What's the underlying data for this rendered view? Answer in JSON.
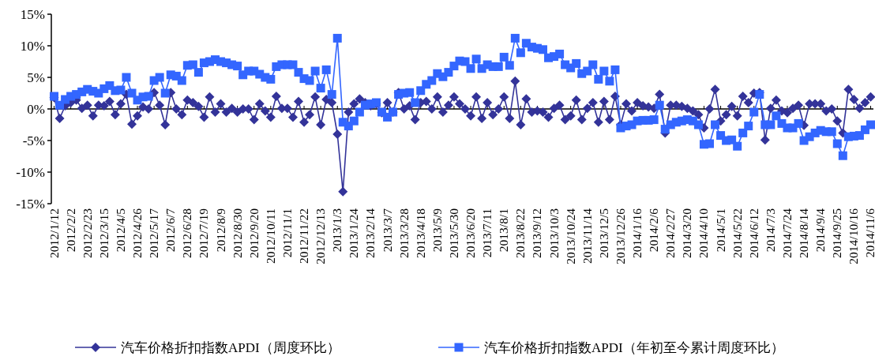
{
  "chart_data": {
    "type": "line",
    "categories": [
      "2012/1/12",
      null,
      null,
      "2012/2/2",
      null,
      null,
      "2012/2/23",
      null,
      null,
      "2012/3/15",
      null,
      null,
      "2012/4/5",
      null,
      null,
      "2012/4/26",
      null,
      null,
      "2012/5/17",
      null,
      null,
      "2012/6/7",
      null,
      null,
      "2012/6/28",
      null,
      null,
      "2012/7/19",
      null,
      null,
      "2012/8/9",
      null,
      null,
      "2012/8/30",
      null,
      null,
      "2012/9/20",
      null,
      null,
      "2012/10/11",
      null,
      null,
      "2012/11/1",
      null,
      null,
      "2012/11/22",
      null,
      null,
      "2012/12/13",
      null,
      null,
      "2013/1/3",
      null,
      null,
      "2013/1/24",
      null,
      null,
      "2013/2/14",
      null,
      null,
      "2013/3/7",
      null,
      null,
      "2013/3/28",
      null,
      null,
      "2013/4/18",
      null,
      null,
      "2013/5/9",
      null,
      null,
      "2013/5/30",
      null,
      null,
      "2013/6/20",
      null,
      null,
      "2013/7/11",
      null,
      null,
      "2013/8/1",
      null,
      null,
      "2013/8/22",
      null,
      null,
      "2013/9/12",
      null,
      null,
      "2013/10/3",
      null,
      null,
      "2013/10/24",
      null,
      null,
      "2013/11/14",
      null,
      null,
      "2013/12/5",
      null,
      null,
      "2013/12/26",
      null,
      null,
      "2014/1/16",
      null,
      null,
      "2014/2/6",
      null,
      null,
      "2014/2/27",
      null,
      null,
      "2014/3/20",
      null,
      null,
      "2014/4/10",
      null,
      null,
      "2014/5/1",
      null,
      null,
      "2014/5/22",
      null,
      null,
      "2014/6/12",
      null,
      null,
      "2014/7/3",
      null,
      null,
      "2014/7/24",
      null,
      null,
      "2014/8/14",
      null,
      null,
      "2014/9/4",
      null,
      null,
      "2014/9/25",
      null,
      null,
      "2014/10/16",
      null,
      null,
      "2014/11/6"
    ],
    "series": [
      {
        "name": "汽车价格折扣指数APDI（周度环比）",
        "color": "#333399",
        "marker": "diamond",
        "values": [
          1.8,
          -1.5,
          0.5,
          1.0,
          1.4,
          0.1,
          0.6,
          -1.1,
          0.6,
          0.5,
          1.2,
          -0.9,
          0.8,
          2.3,
          -2.4,
          -1.1,
          0.3,
          0,
          2.6,
          0.6,
          -2.5,
          2.6,
          0,
          -0.9,
          1.4,
          1.0,
          0.4,
          -1.3,
          1.9,
          -0.5,
          0.8,
          -0.5,
          0.1,
          -0.5,
          0,
          0,
          -1.7,
          0.8,
          -0.3,
          -1.3,
          2.0,
          0.1,
          0.1,
          -1.3,
          1.2,
          -2.1,
          -0.9,
          1.9,
          -2.5,
          1.5,
          1.0,
          -4.0,
          -13.1,
          -0.5,
          0.8,
          1.6,
          1.0,
          0.5,
          0.8,
          -0.6,
          1.0,
          -0.5,
          2.6,
          0,
          0.5,
          -1.7,
          1.0,
          1.2,
          0,
          1.9,
          -0.5,
          0.6,
          1.9,
          0.8,
          0,
          -1.1,
          1.9,
          -1.5,
          1.0,
          -0.9,
          0,
          1.9,
          -1.5,
          4.4,
          -2.5,
          1.6,
          -0.5,
          -0.3,
          -0.5,
          -1.3,
          0.1,
          0.6,
          -1.7,
          -1.1,
          1.4,
          -1.7,
          0.1,
          1.0,
          -2.1,
          1.2,
          -1.7,
          2.0,
          -2.5,
          0.8,
          -0.3,
          1.0,
          0.5,
          0.3,
          0.1,
          2.3,
          -3.8,
          0.6,
          0.6,
          0.4,
          0.1,
          -0.3,
          -0.9,
          -3.0,
          0,
          3.1,
          -1.9,
          -0.9,
          0.4,
          -1.1,
          2.0,
          1.0,
          2.5,
          2.6,
          -4.9,
          0.1,
          1.4,
          -0.3,
          -0.6,
          0.1,
          0.6,
          -2.6,
          0.8,
          0.8,
          0.8,
          -0.3,
          0,
          -1.9,
          -3.8,
          3.1,
          1.5,
          0.1,
          1.0,
          1.9
        ]
      },
      {
        "name": "汽车价格折扣指数APDI（年初至今累计周度环比）",
        "color": "#3366ff",
        "marker": "square",
        "values": [
          2.0,
          0.6,
          1.5,
          2.0,
          2.3,
          2.7,
          3.1,
          2.8,
          2.5,
          3.2,
          3.7,
          2.9,
          3.0,
          5.0,
          2.5,
          1.4,
          1.9,
          2.0,
          4.5,
          5.0,
          2.5,
          5.4,
          5.2,
          4.5,
          6.9,
          7.0,
          5.8,
          7.3,
          7.5,
          7.8,
          7.5,
          7.3,
          7.0,
          6.8,
          5.4,
          6.0,
          6.0,
          5.5,
          5.0,
          4.7,
          6.7,
          7.0,
          7.0,
          7.0,
          5.8,
          4.8,
          4.5,
          6.0,
          3.3,
          6.2,
          2.3,
          11.2,
          -2.1,
          -2.7,
          -1.9,
          -0.5,
          0.6,
          0.8,
          1.0,
          -0.5,
          -1.3,
          -0.5,
          2.3,
          2.5,
          2.6,
          1.0,
          2.9,
          3.9,
          4.5,
          5.6,
          5.1,
          5.8,
          6.8,
          7.6,
          7.5,
          6.4,
          7.9,
          6.4,
          7.0,
          6.7,
          6.7,
          8.2,
          6.9,
          11.2,
          8.9,
          10.4,
          9.8,
          9.6,
          9.4,
          8.1,
          8.3,
          8.7,
          7.0,
          6.5,
          7.2,
          5.6,
          6.0,
          7.0,
          4.7,
          6.0,
          4.4,
          6.2,
          -3.0,
          -2.7,
          -2.5,
          -1.9,
          -1.8,
          -1.8,
          -1.7,
          0.6,
          -3.2,
          -2.5,
          -2.1,
          -1.9,
          -1.7,
          -1.9,
          -2.5,
          -5.6,
          -5.5,
          -2.5,
          -4.2,
          -5.0,
          -4.9,
          -5.9,
          -3.8,
          -2.7,
          -0.5,
          2.3,
          -2.5,
          -2.5,
          -1.1,
          -2.3,
          -3.0,
          -3.0,
          -2.3,
          -5.0,
          -4.4,
          -3.8,
          -3.4,
          -3.6,
          -3.6,
          -5.5,
          -7.4,
          -4.4,
          -4.3,
          -4.2,
          -3.3,
          -2.5
        ]
      }
    ],
    "ylim": [
      -15,
      15
    ],
    "yticks": [
      {
        "value": -15,
        "label": "-15%"
      },
      {
        "value": -10,
        "label": "-10%"
      },
      {
        "value": -5,
        "label": "-5%"
      },
      {
        "value": 0,
        "label": "0%"
      },
      {
        "value": 5,
        "label": "5%"
      },
      {
        "value": 10,
        "label": "10%"
      },
      {
        "value": 15,
        "label": "15%"
      }
    ],
    "legend": "bottom"
  }
}
